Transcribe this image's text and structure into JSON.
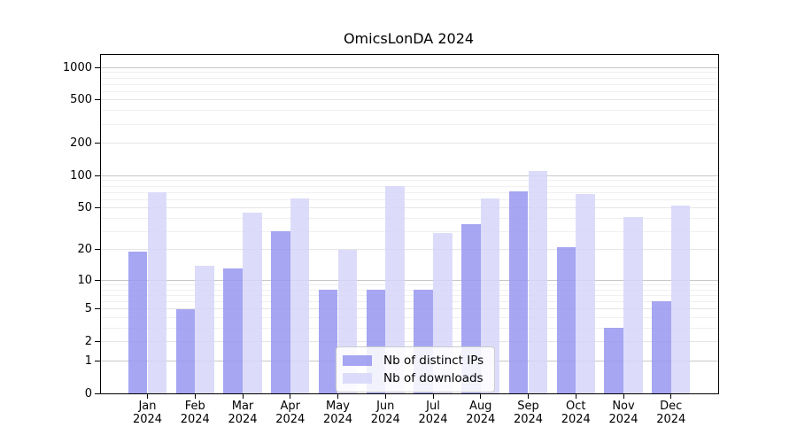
{
  "chart_data": {
    "type": "bar",
    "title": "OmicsLonDA 2024",
    "year": "2024",
    "categories": [
      "Jan",
      "Feb",
      "Mar",
      "Apr",
      "May",
      "Jun",
      "Jul",
      "Aug",
      "Sep",
      "Oct",
      "Nov",
      "Dec"
    ],
    "series": [
      {
        "name": "Nb of distinct IPs",
        "color": "#9797f0",
        "opacity": 0.85,
        "values": [
          19,
          5,
          13,
          30,
          8,
          8,
          8,
          35,
          72,
          21,
          3,
          6
        ]
      },
      {
        "name": "Nb of downloads",
        "color": "#d6d6f9",
        "opacity": 0.85,
        "values": [
          70,
          14,
          45,
          61,
          20,
          80,
          29,
          61,
          110,
          67,
          41,
          53
        ]
      }
    ],
    "xlabel": "",
    "ylabel": "",
    "y_axis": {
      "scale": "log1p",
      "ticks": [
        0,
        1,
        2,
        5,
        10,
        20,
        50,
        100,
        200,
        500,
        1000
      ],
      "ylim": [
        0,
        1306
      ],
      "gridlines_major": [
        1,
        10,
        100,
        1000
      ],
      "gridlines_mid": [
        2,
        5,
        20,
        50,
        200,
        500
      ],
      "gridlines_minor": [
        3,
        4,
        6,
        7,
        8,
        9,
        30,
        40,
        60,
        70,
        80,
        90,
        300,
        400,
        600,
        700,
        800,
        900
      ],
      "grid_color_major": "#c8c8c8",
      "grid_color_mid": "#e5e5e5",
      "grid_color_minor": "#f0f0f0"
    },
    "legend": {
      "position": "lower-center"
    },
    "grid": true
  }
}
